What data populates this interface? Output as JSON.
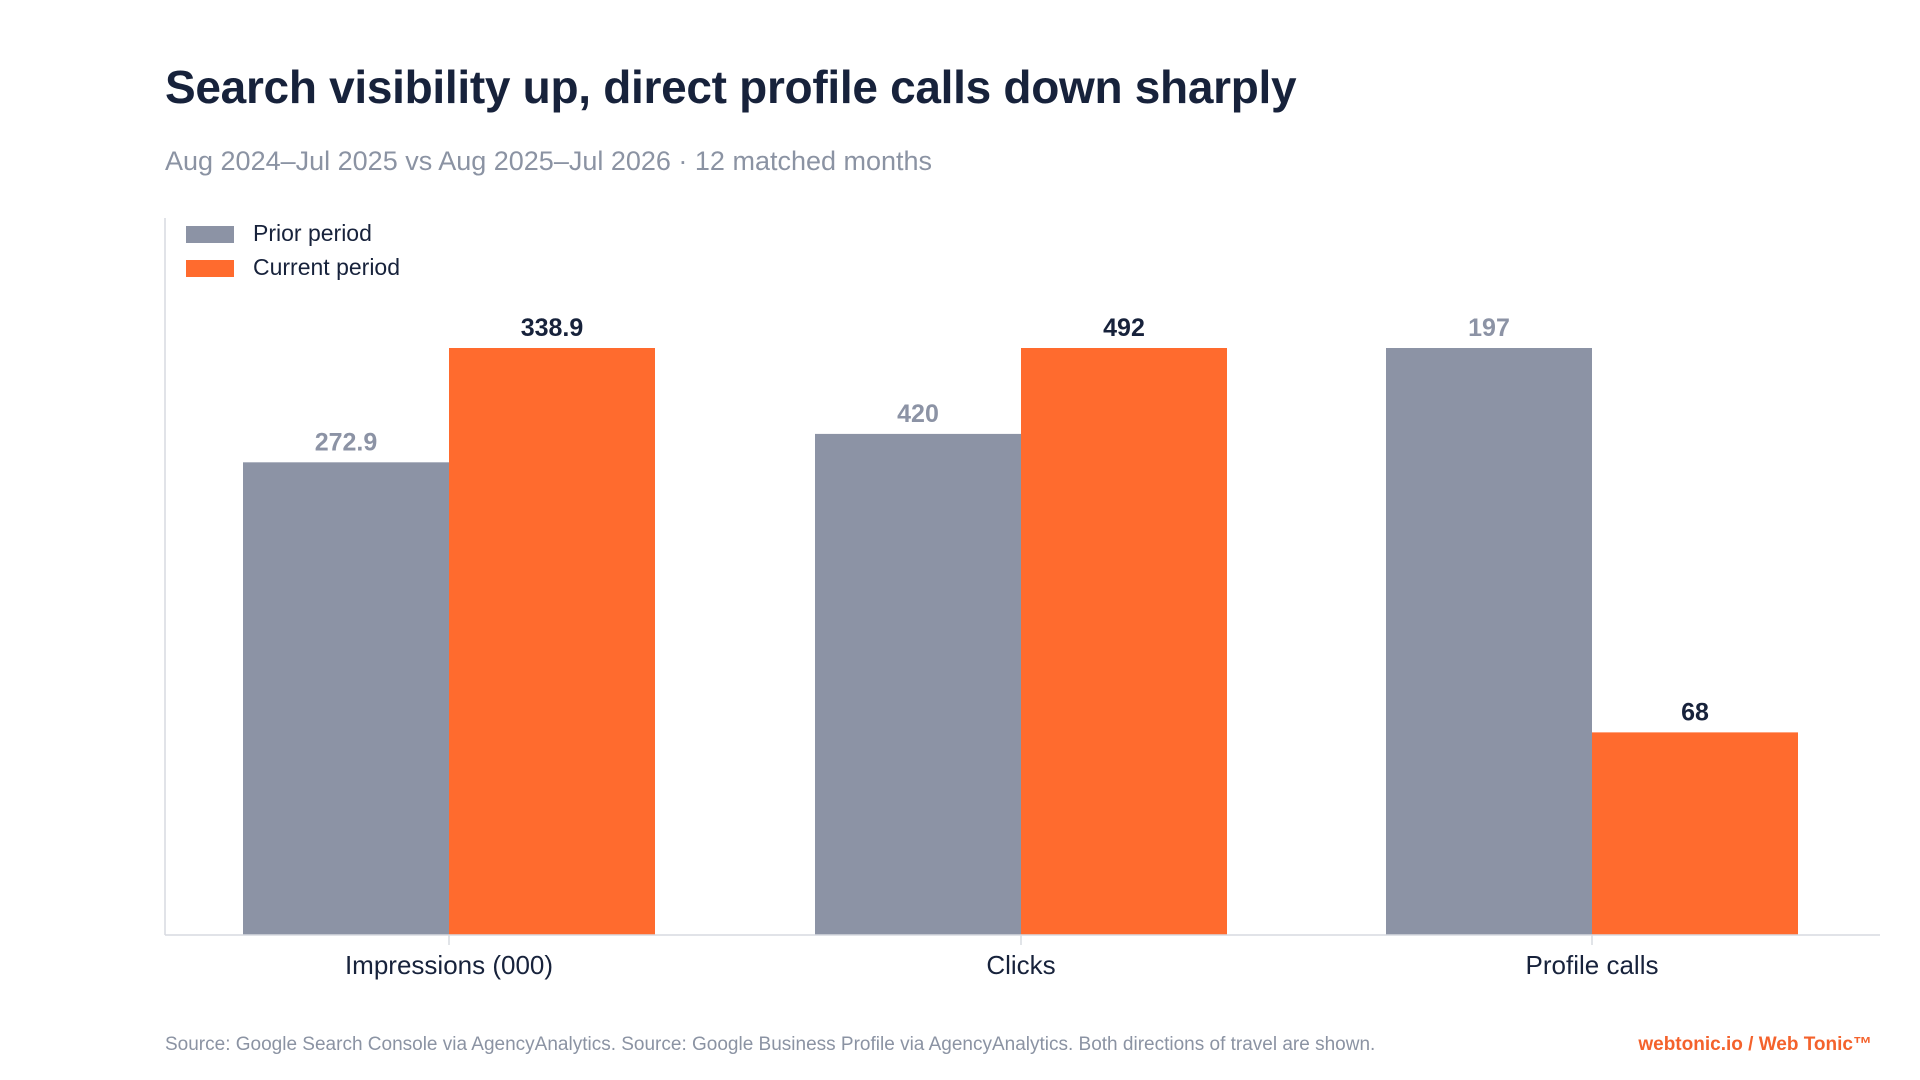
{
  "header": {
    "title": "Search visibility up, direct profile calls down sharply",
    "subtitle": "Aug 2024–Jul 2025 vs Aug 2025–Jul 2026 · 12 matched months"
  },
  "footer": {
    "source": "Source: Google Search Console via AgencyAnalytics. Source: Google Business Profile via AgencyAnalytics. Both directions of travel are shown.",
    "brand": "webtonic.io / Web Tonic™"
  },
  "colors": {
    "prior": "#8c93a5",
    "current": "#ff6b2e",
    "prior_label": "#8c93a5",
    "current_label": "#17223b",
    "axis": "#d7dae0",
    "category_label": "#17223b"
  },
  "chart_data": {
    "type": "bar",
    "title": "Search visibility up, direct profile calls down sharply",
    "subtitle": "Aug 2024–Jul 2025 vs Aug 2025–Jul 2026 · 12 matched months",
    "categories": [
      "Impressions (000)",
      "Clicks",
      "Profile calls"
    ],
    "series": [
      {
        "name": "Prior period",
        "values": [
          272.9,
          420,
          197
        ],
        "labels": [
          "272.9",
          "420",
          "197"
        ]
      },
      {
        "name": "Current period",
        "values": [
          338.9,
          492,
          68
        ],
        "labels": [
          "338.9",
          "492",
          "68"
        ]
      }
    ],
    "scale": "each category scaled to its own maximum",
    "grid": false,
    "legend": "top-left",
    "xlabel": "",
    "ylabel": ""
  }
}
